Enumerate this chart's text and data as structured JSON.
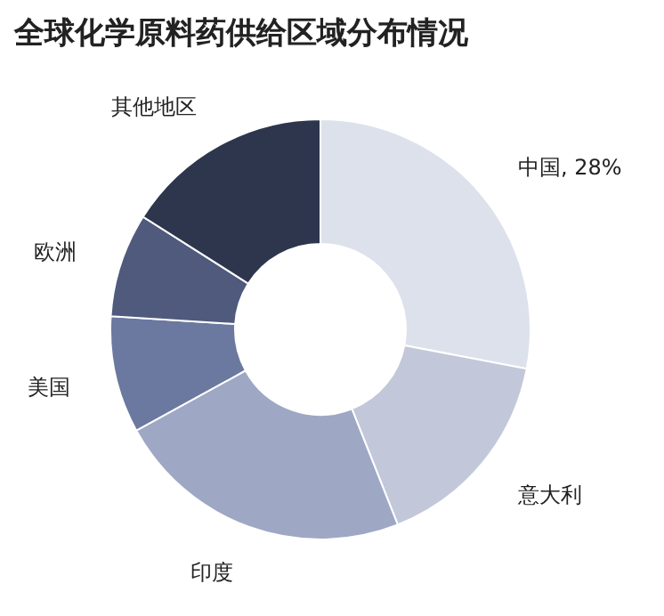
{
  "chart_data": {
    "type": "donut",
    "title": "全球化学原料药供给区域分布情况",
    "categories": [
      "中国",
      "意大利",
      "印度",
      "美国",
      "欧洲",
      "其他地区"
    ],
    "values": [
      28,
      16,
      23,
      9,
      8,
      16
    ],
    "value_labels": [
      "28%",
      null,
      null,
      null,
      null,
      null
    ],
    "colors": [
      "#dde1ec",
      "#c2c8d9",
      "#9ea7c4",
      "#6b789f",
      "#4f5a7d",
      "#2d364d"
    ]
  }
}
